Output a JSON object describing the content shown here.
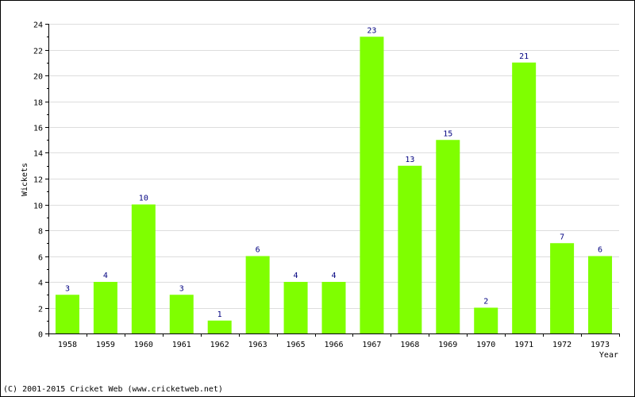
{
  "chart_data": {
    "type": "bar",
    "categories": [
      "1958",
      "1959",
      "1960",
      "1961",
      "1962",
      "1963",
      "1965",
      "1966",
      "1967",
      "1968",
      "1969",
      "1970",
      "1971",
      "1972",
      "1973"
    ],
    "values": [
      3,
      4,
      10,
      3,
      1,
      6,
      4,
      4,
      23,
      13,
      15,
      2,
      21,
      7,
      6
    ],
    "xlabel": "Year",
    "ylabel": "Wickets",
    "ylim": [
      0,
      24
    ],
    "yticks": [
      0,
      2,
      4,
      6,
      8,
      10,
      12,
      14,
      16,
      18,
      20,
      22,
      24
    ],
    "grid": true,
    "bar_color": "#7fff00",
    "data_label_color": "#000080"
  },
  "footer": {
    "copyright": "(C) 2001-2015 Cricket Web (www.cricketweb.net)"
  }
}
